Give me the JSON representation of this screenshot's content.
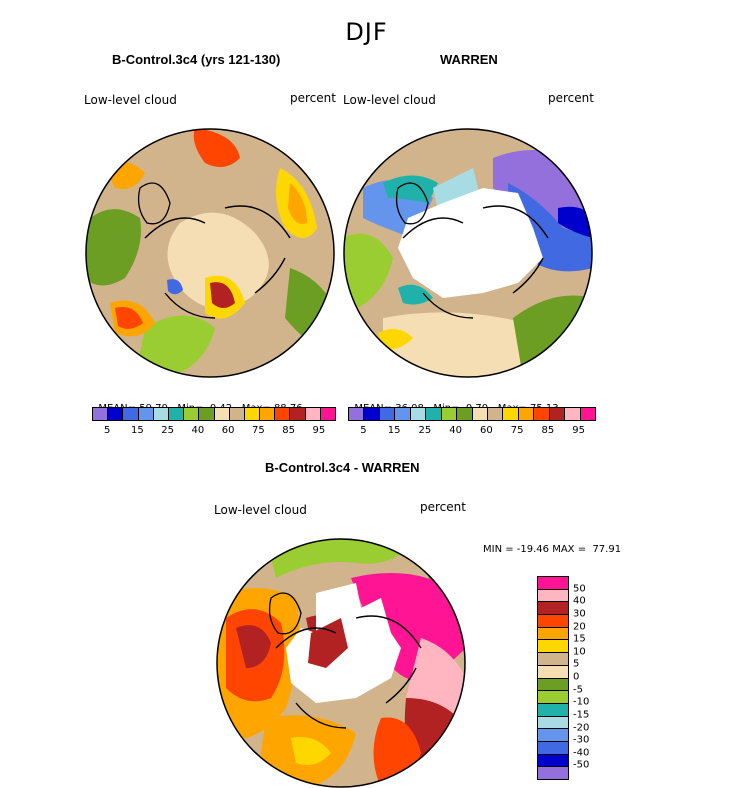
{
  "season": "DJF",
  "panels": [
    {
      "title": "B-Control.3c4 (yrs 121-130)",
      "field_label": "Low-level cloud",
      "units": "percent",
      "stats": {
        "mean_label": "MEAN=",
        "mean": "59.70",
        "min_label": "Min=",
        "min": "0.42",
        "max_label": "Max=",
        "max": "88.76"
      }
    },
    {
      "title": "WARREN",
      "field_label": "Low-level cloud",
      "units": "percent",
      "stats": {
        "mean_label": "MEAN=",
        "mean": "36.08",
        "min_label": "Min=",
        "min": "0.70",
        "max_label": "Max=",
        "max": "75.13"
      }
    },
    {
      "title": "B-Control.3c4 - WARREN",
      "field_label": "Low-level cloud",
      "units": "percent",
      "stats_text": "MIN = -19.46 MAX =  77.91"
    }
  ],
  "colorbar_abs": {
    "colors": [
      "#9370db",
      "#0000cd",
      "#4169e1",
      "#6495ed",
      "#a8dce4",
      "#20b2aa",
      "#9acd32",
      "#6b9e23",
      "#f5deb3",
      "#d2b48c",
      "#ffd700",
      "#ffa500",
      "#ff4500",
      "#b22222",
      "#ffb6c1",
      "#ff1493"
    ],
    "tick_labels": [
      "5",
      "15",
      "25",
      "40",
      "60",
      "75",
      "85",
      "95"
    ]
  },
  "colorbar_diff": {
    "colors": [
      "#ff1493",
      "#ffb6c1",
      "#b22222",
      "#ff4500",
      "#ffa500",
      "#ffd700",
      "#d2b48c",
      "#f5deb3",
      "#6b9e23",
      "#9acd32",
      "#20b2aa",
      "#a8dce4",
      "#6495ed",
      "#4169e1",
      "#0000cd",
      "#9370db"
    ],
    "tick_labels": [
      "50",
      "40",
      "30",
      "20",
      "15",
      "10",
      "5",
      "0",
      "-5",
      "-10",
      "-15",
      "-20",
      "-30",
      "-40",
      "-50"
    ]
  },
  "map_colors": {
    "land_tan": "#d2b48c",
    "wheat": "#f5deb3",
    "green": "#6b9e23",
    "lightgreen": "#9acd32",
    "yellow": "#ffd700",
    "orange": "#ffa500",
    "red": "#ff4500",
    "darkred": "#b22222",
    "purple": "#9370db",
    "blue": "#4169e1",
    "darkblue": "#0000cd",
    "pink": "#ffb6c1",
    "magenta": "#ff1493",
    "teal": "#20b2aa",
    "lightblue": "#6495ed"
  }
}
